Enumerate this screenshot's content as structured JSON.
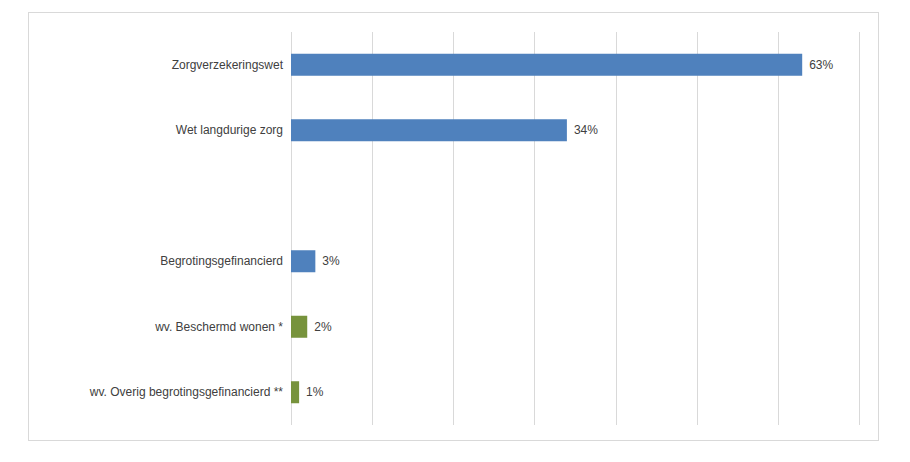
{
  "chart_data": {
    "type": "bar",
    "orientation": "horizontal",
    "categories": [
      "Zorgverzekeringswet",
      "Wet langdurige zorg",
      null,
      "Begrotingsgefinancierd",
      "wv. Beschermd wonen *",
      "wv. Overig begrotingsgefinancierd **"
    ],
    "values": [
      63,
      34,
      null,
      3,
      2,
      1
    ],
    "value_labels": [
      "63%",
      "34%",
      null,
      "3%",
      "2%",
      "1%"
    ],
    "colors": [
      "#4f81bd",
      "#4f81bd",
      null,
      "#4f81bd",
      "#77933c",
      "#77933c"
    ],
    "xlim": [
      0,
      70
    ],
    "xticks": [
      0,
      10,
      20,
      30,
      40,
      50,
      60,
      70
    ],
    "grid": true,
    "data_labels": true,
    "tick_labels": false
  }
}
